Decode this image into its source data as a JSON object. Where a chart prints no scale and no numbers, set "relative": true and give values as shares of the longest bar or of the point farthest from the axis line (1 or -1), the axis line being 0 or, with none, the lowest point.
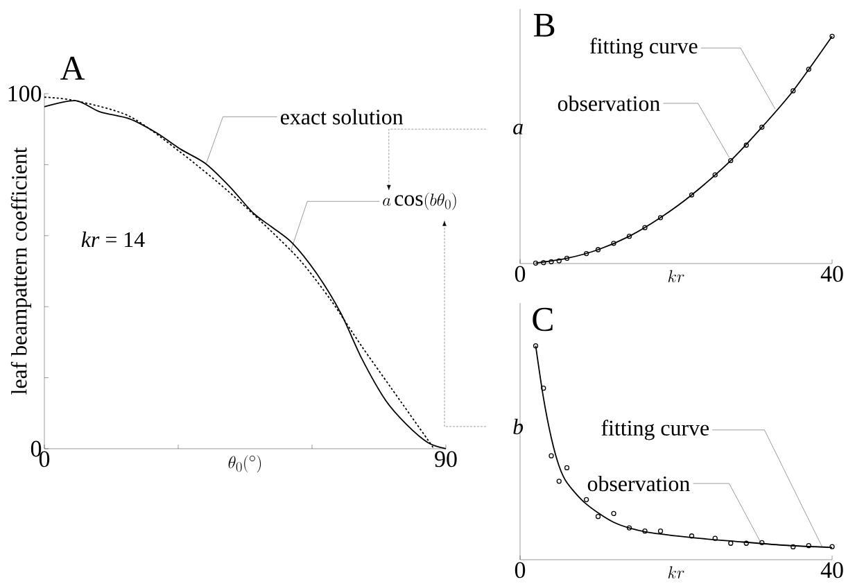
{
  "chart_data": [
    {
      "type": "line",
      "title": "A",
      "xlabel": "\\theta_0(^\\circ)",
      "ylabel": "leaf beampattern coefficient",
      "xlim": [
        0,
        90
      ],
      "ylim": [
        0,
        100
      ],
      "xticks": [
        0,
        {
          "value": 30,
          "label": null
        },
        {
          "value": 60,
          "label": null
        },
        90
      ],
      "yticks": [
        0,
        {
          "value": 20,
          "label": null
        },
        {
          "value": 40,
          "label": null
        },
        {
          "value": 60,
          "label": null
        },
        {
          "value": 80,
          "label": null
        },
        100
      ],
      "series": [
        {
          "color": "#000000",
          "line_style": "solid",
          "x": [
            0,
            7,
            12.4,
            19.1,
            25.2,
            30.6,
            36,
            41.4,
            46.8,
            50.8,
            55.6,
            61,
            66.4,
            71.1,
            76.5,
            81.2,
            86,
            90
          ],
          "values": [
            96.3,
            98,
            94.9,
            92.9,
            88.9,
            84.3,
            80.4,
            74,
            66.4,
            62.6,
            57.9,
            49.4,
            38.3,
            25.5,
            13.6,
            6.8,
            1.7,
            0
          ]
        },
        {
          "color": "#000000",
          "line_style": "dashed",
          "x": [
            0,
            7,
            19.1,
            30.6,
            41.4,
            50.8,
            57.5,
            64.3,
            71.1,
            77.8,
            85.9,
            87.3
          ],
          "values": [
            99,
            98,
            93.6,
            83.4,
            72.3,
            61.3,
            52.8,
            41.7,
            28.9,
            17,
            2.6,
            0
          ]
        }
      ],
      "annotations": [
        {
          "text": "exact solution",
          "x": 36.3,
          "y": 80.4
        },
        {
          "text": "a\\cos(b\\theta_0)",
          "x": 55.2,
          "y": 55.6
        },
        "*kr* = 14",
        "*a*",
        "*b*"
      ]
    },
    {
      "type": "scatter",
      "title": "B",
      "xlabel": "kr",
      "xlim": [
        0,
        40
      ],
      "xticks": [
        0,
        40
      ],
      "relative": true,
      "series": [
        {
          "type": "scatter",
          "marker": "circle",
          "color": "#000000",
          "x": [
            2,
            3,
            4,
            5,
            6,
            8.5,
            10,
            12,
            14,
            16,
            18,
            22,
            25,
            27,
            29,
            31,
            35,
            37,
            40
          ],
          "values": [
            0.002,
            0.004,
            0.008,
            0.012,
            0.023,
            0.044,
            0.061,
            0.089,
            0.12,
            0.158,
            0.202,
            0.302,
            0.39,
            0.453,
            0.521,
            0.6,
            0.76,
            0.855,
            1
          ]
        },
        {
          "type": "line",
          "marker": "none",
          "color": "#000000",
          "x": [
            2,
            6,
            10,
            14,
            18,
            22,
            27,
            31,
            35,
            40
          ],
          "values": [
            0.002,
            0.023,
            0.061,
            0.12,
            0.202,
            0.302,
            0.453,
            0.6,
            0.76,
            1
          ]
        }
      ],
      "annotations": [
        {
          "text": "fitting curve",
          "x": 32.7,
          "y": 0.68
        },
        {
          "text": "observation",
          "x": 26.8,
          "y": 0.467
        }
      ]
    },
    {
      "type": "scatter",
      "title": "C",
      "xlabel": "kr",
      "xlim": [
        0,
        40
      ],
      "xticks": [
        0,
        40
      ],
      "relative": true,
      "series": [
        {
          "type": "scatter",
          "marker": "circle",
          "color": "#000000",
          "x": [
            2,
            3,
            4,
            5,
            6,
            8.5,
            10,
            12,
            14,
            16,
            18,
            22,
            25,
            27,
            29,
            31,
            35,
            37,
            40
          ],
          "values": [
            1,
            0.802,
            0.486,
            0.367,
            0.43,
            0.281,
            0.202,
            0.216,
            0.149,
            0.134,
            0.134,
            0.111,
            0.1,
            0.077,
            0.077,
            0.08,
            0.06,
            0.066,
            0.061
          ]
        },
        {
          "type": "line",
          "marker": "none",
          "color": "#000000",
          "x": [
            2,
            3,
            4,
            5,
            6,
            8.4,
            12,
            16,
            21.9,
            27.8,
            33.7,
            40
          ],
          "values": [
            1,
            0.756,
            0.57,
            0.438,
            0.361,
            0.263,
            0.175,
            0.131,
            0.104,
            0.085,
            0.068,
            0.057
          ]
        }
      ],
      "annotations": [
        {
          "text": "fitting curve",
          "x": 38.7,
          "y": 0.062
        },
        {
          "text": "observation",
          "x": 30.8,
          "y": 0.084
        }
      ]
    }
  ]
}
